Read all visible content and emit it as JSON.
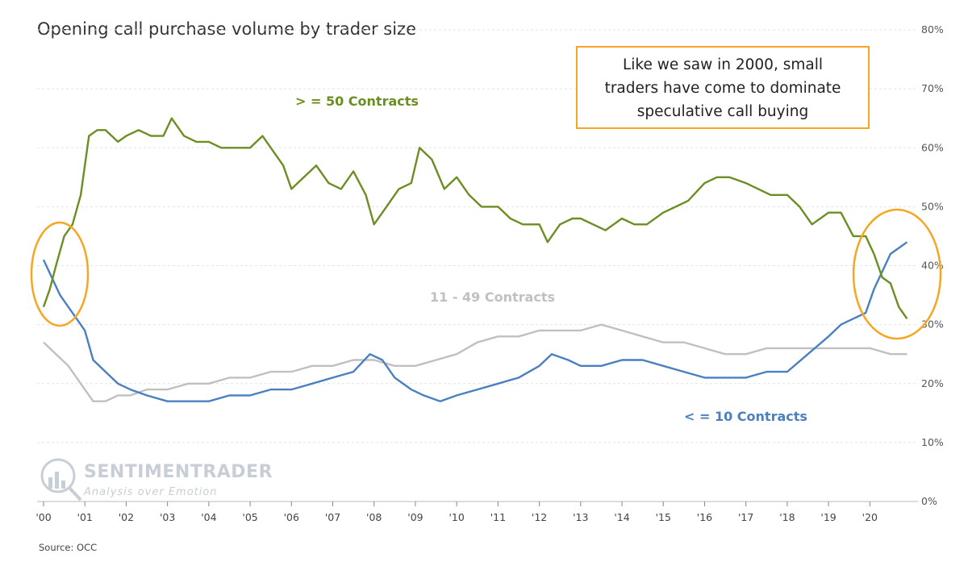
{
  "chart_data": {
    "type": "line",
    "title": "Opening call purchase volume by trader size",
    "xlabel": "",
    "ylabel": "",
    "x_tick_labels": [
      "'00",
      "'01",
      "'02",
      "'03",
      "'04",
      "'05",
      "'06",
      "'07",
      "'08",
      "'09",
      "'10",
      "'11",
      "'12",
      "'13",
      "'14",
      "'15",
      "'16",
      "'17",
      "'18",
      "'19",
      "'20"
    ],
    "x_range": [
      2000.0,
      2020.97
    ],
    "y_tick_labels": [
      "0%",
      "10%",
      "20%",
      "30%",
      "40%",
      "50%",
      "60%",
      "70%",
      "80%"
    ],
    "ylim": [
      0,
      80
    ],
    "grid": "horizontal dashed",
    "series": [
      {
        "name": "> = 50 Contracts",
        "color": "#6b8e23",
        "x": [
          2000.0,
          2000.15,
          2000.3,
          2000.5,
          2000.7,
          2000.9,
          2001.0,
          2001.1,
          2001.3,
          2001.5,
          2001.8,
          2002.0,
          2002.3,
          2002.6,
          2002.9,
          2003.1,
          2003.4,
          2003.7,
          2004.0,
          2004.3,
          2004.6,
          2005.0,
          2005.3,
          2005.6,
          2005.8,
          2006.0,
          2006.3,
          2006.6,
          2006.9,
          2007.2,
          2007.5,
          2007.8,
          2008.0,
          2008.3,
          2008.6,
          2008.9,
          2009.1,
          2009.4,
          2009.7,
          2010.0,
          2010.3,
          2010.6,
          2011.0,
          2011.3,
          2011.6,
          2012.0,
          2012.2,
          2012.5,
          2012.8,
          2013.0,
          2013.3,
          2013.6,
          2014.0,
          2014.3,
          2014.6,
          2015.0,
          2015.3,
          2015.6,
          2016.0,
          2016.3,
          2016.6,
          2017.0,
          2017.3,
          2017.6,
          2018.0,
          2018.3,
          2018.6,
          2019.0,
          2019.3,
          2019.6,
          2019.9,
          2020.1,
          2020.3,
          2020.5,
          2020.7,
          2020.9
        ],
        "values": [
          33,
          36,
          40,
          45,
          47,
          52,
          57,
          62,
          63,
          63,
          61,
          62,
          63,
          62,
          62,
          65,
          62,
          61,
          61,
          60,
          60,
          60,
          62,
          59,
          57,
          53,
          55,
          57,
          54,
          53,
          56,
          52,
          47,
          50,
          53,
          54,
          60,
          58,
          53,
          55,
          52,
          50,
          50,
          48,
          47,
          47,
          44,
          47,
          48,
          48,
          47,
          46,
          48,
          47,
          47,
          49,
          50,
          51,
          54,
          55,
          55,
          54,
          53,
          52,
          52,
          50,
          47,
          49,
          49,
          45,
          45,
          42,
          38,
          37,
          33,
          31
        ]
      },
      {
        "name": "11 - 49 Contracts",
        "color": "#c0c0c0",
        "x": [
          2000.0,
          2000.3,
          2000.6,
          2000.9,
          2001.2,
          2001.5,
          2001.8,
          2002.1,
          2002.5,
          2003.0,
          2003.5,
          2004.0,
          2004.5,
          2005.0,
          2005.5,
          2006.0,
          2006.5,
          2007.0,
          2007.5,
          2008.0,
          2008.5,
          2009.0,
          2009.5,
          2010.0,
          2010.5,
          2011.0,
          2011.5,
          2012.0,
          2012.5,
          2013.0,
          2013.5,
          2014.0,
          2014.5,
          2015.0,
          2015.5,
          2016.0,
          2016.5,
          2017.0,
          2017.5,
          2018.0,
          2018.5,
          2019.0,
          2019.5,
          2020.0,
          2020.5,
          2020.9
        ],
        "values": [
          27,
          25,
          23,
          20,
          17,
          17,
          18,
          18,
          19,
          19,
          20,
          20,
          21,
          21,
          22,
          22,
          23,
          23,
          24,
          24,
          23,
          23,
          24,
          25,
          27,
          28,
          28,
          29,
          29,
          29,
          30,
          29,
          28,
          27,
          27,
          26,
          25,
          25,
          26,
          26,
          26,
          26,
          26,
          26,
          25,
          25
        ]
      },
      {
        "name": "< = 10 Contracts",
        "color": "#4a7fc1",
        "x": [
          2000.0,
          2000.2,
          2000.4,
          2000.6,
          2000.8,
          2001.0,
          2001.2,
          2001.5,
          2001.8,
          2002.1,
          2002.5,
          2003.0,
          2003.5,
          2004.0,
          2004.5,
          2005.0,
          2005.5,
          2006.0,
          2006.5,
          2007.0,
          2007.5,
          2007.9,
          2008.2,
          2008.5,
          2008.9,
          2009.2,
          2009.6,
          2010.0,
          2010.5,
          2011.0,
          2011.5,
          2012.0,
          2012.3,
          2012.7,
          2013.0,
          2013.5,
          2014.0,
          2014.5,
          2015.0,
          2015.5,
          2016.0,
          2016.5,
          2017.0,
          2017.5,
          2018.0,
          2018.5,
          2019.0,
          2019.3,
          2019.6,
          2019.9,
          2020.1,
          2020.3,
          2020.5,
          2020.7,
          2020.9
        ],
        "values": [
          41,
          38,
          35,
          33,
          31,
          29,
          24,
          22,
          20,
          19,
          18,
          17,
          17,
          17,
          18,
          18,
          19,
          19,
          20,
          21,
          22,
          25,
          24,
          21,
          19,
          18,
          17,
          18,
          19,
          20,
          21,
          23,
          25,
          24,
          23,
          23,
          24,
          24,
          23,
          22,
          21,
          21,
          21,
          22,
          22,
          25,
          28,
          30,
          31,
          32,
          36,
          39,
          42,
          43,
          44
        ]
      }
    ],
    "series_labels": {
      "large": "> = 50 Contracts",
      "mid": "11 - 49 Contracts",
      "small": "< = 10 Contracts"
    },
    "annotation": {
      "lines": [
        "Like we saw in 2000, small",
        "traders have come to dominate",
        "speculative call buying"
      ],
      "border_color": "#f5a623"
    },
    "highlight_color": "#f5a623",
    "source": "Source: OCC",
    "watermark": {
      "brand": "SENTIMENTRADER",
      "tagline": "Analysis over Emotion"
    }
  }
}
